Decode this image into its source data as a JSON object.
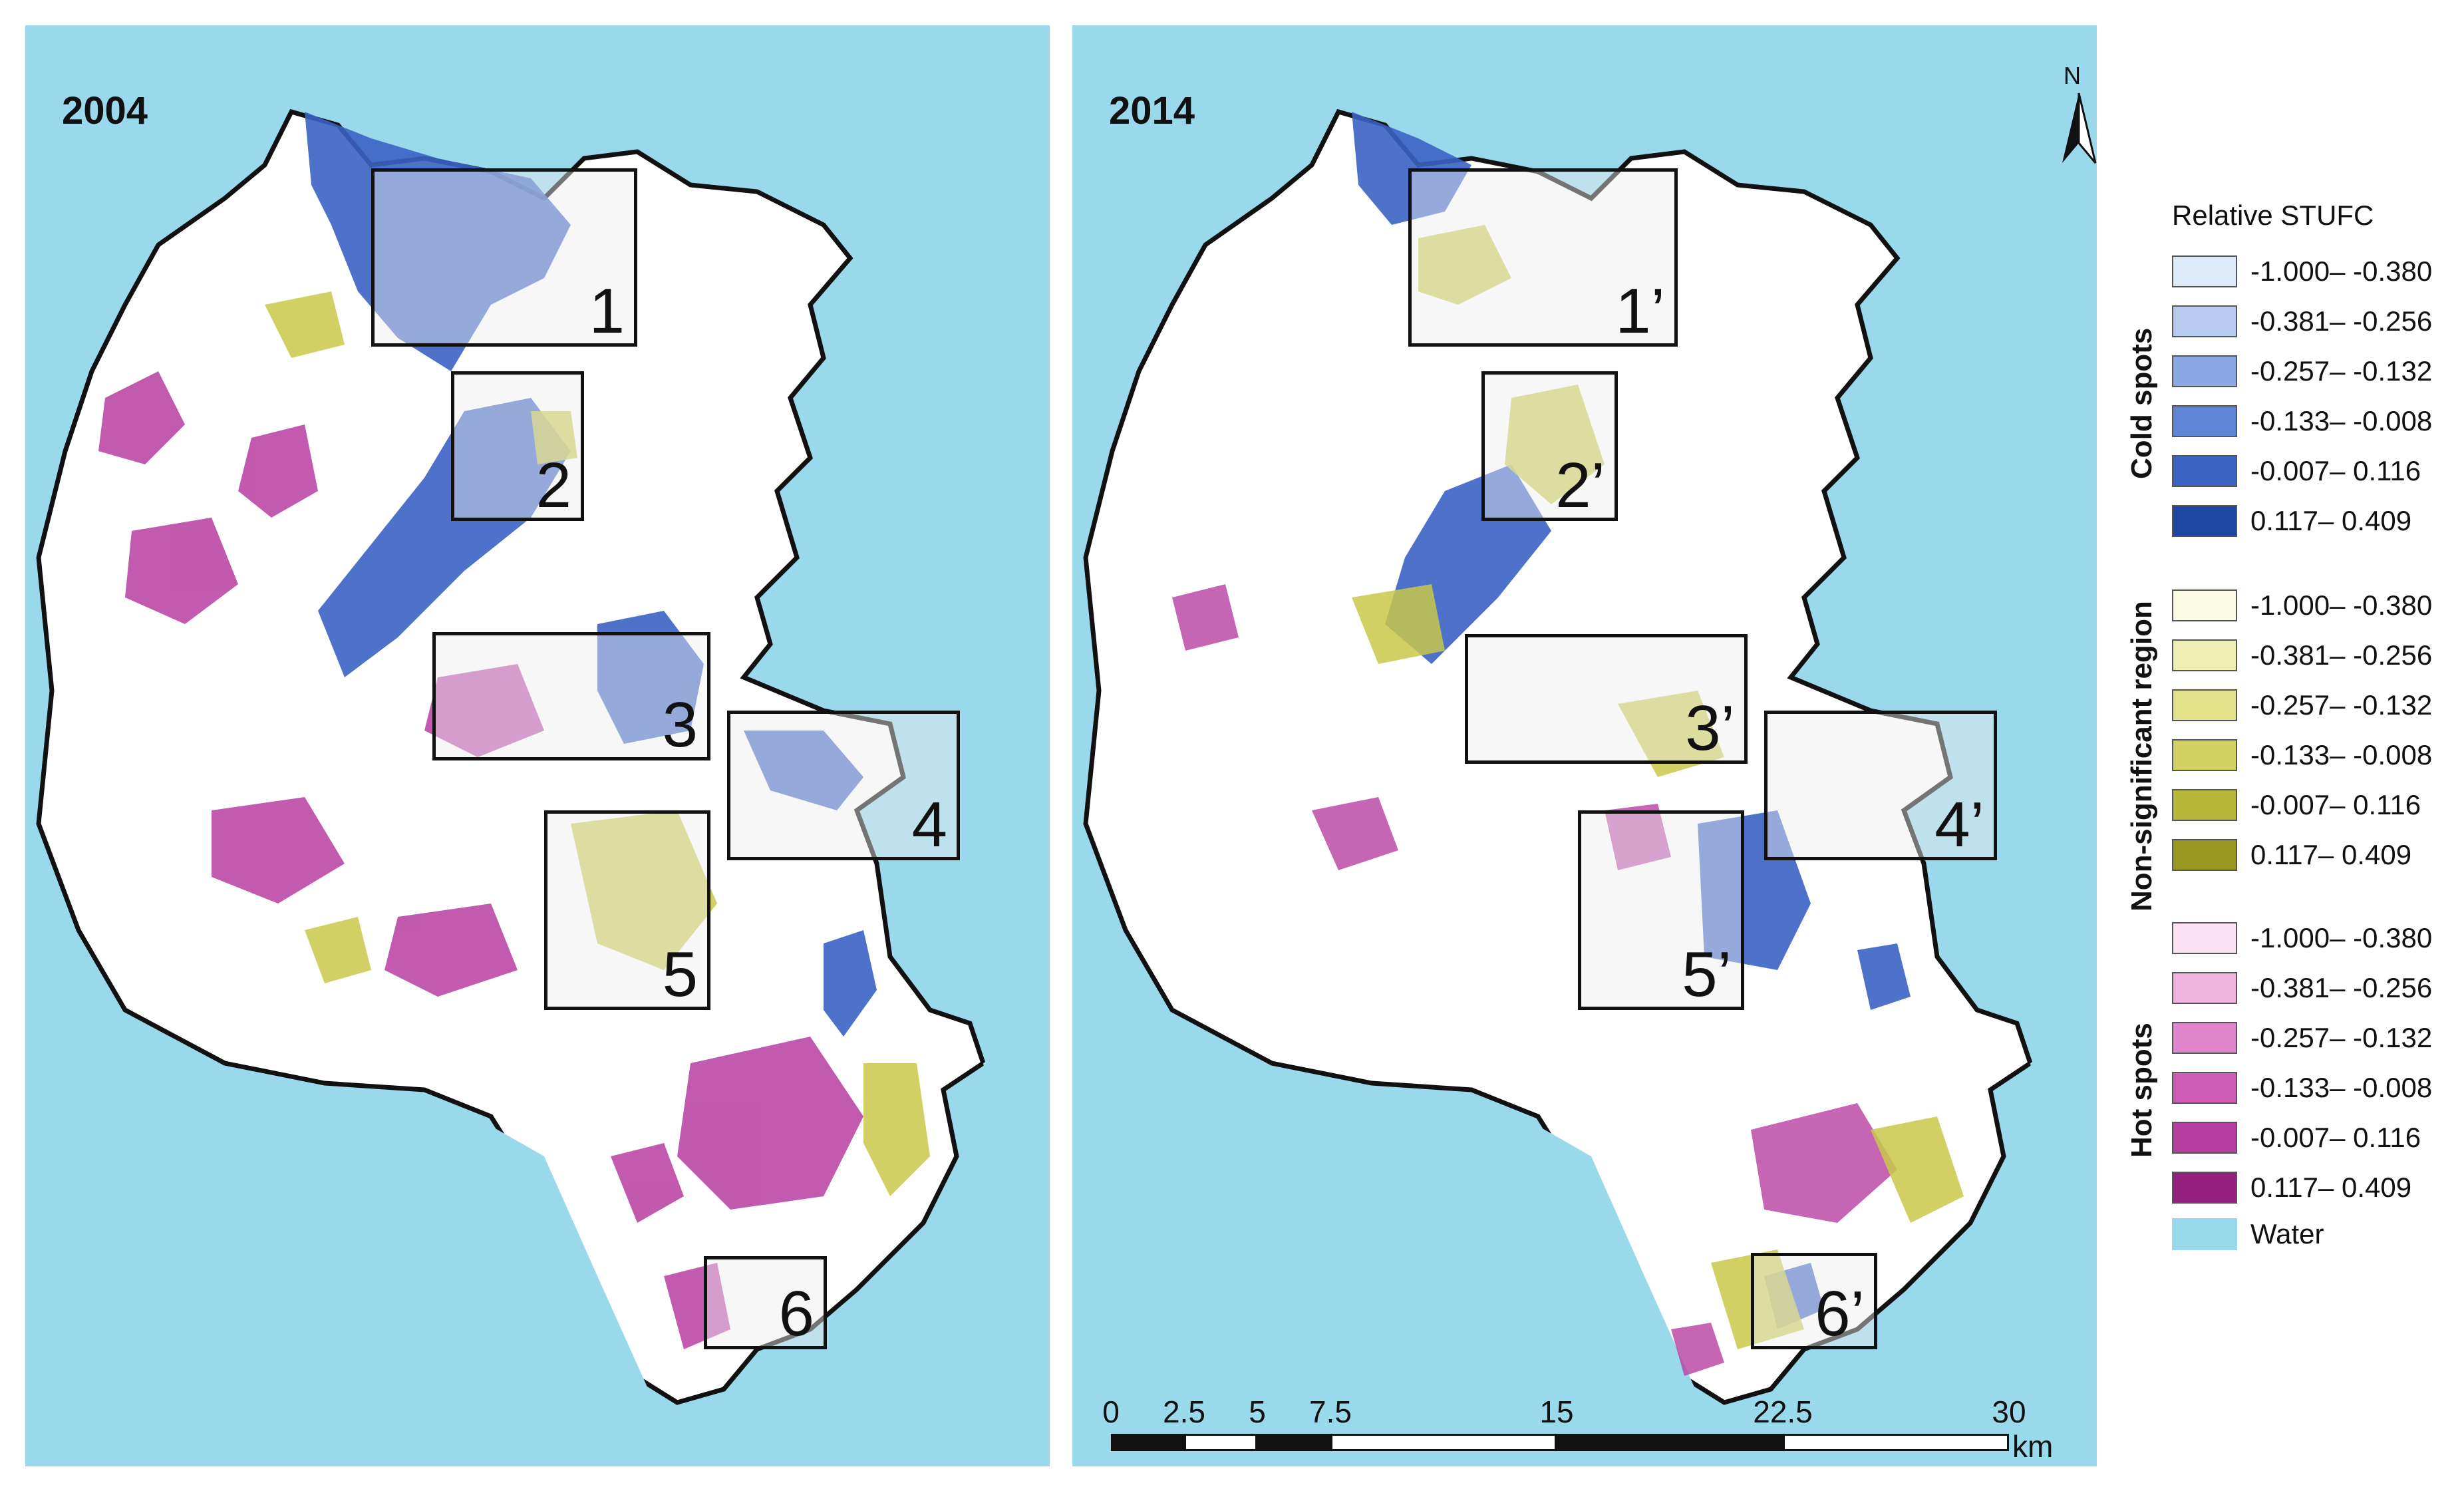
{
  "panels": [
    {
      "year": "2004",
      "insets": [
        "1",
        "2",
        "3",
        "4",
        "5",
        "6"
      ]
    },
    {
      "year": "2014",
      "insets": [
        "1’",
        "2’",
        "3’",
        "4’",
        "5’",
        "6’"
      ]
    }
  ],
  "north_arrow": {
    "label": "N"
  },
  "scale_bar": {
    "ticks": [
      "0",
      "2.5",
      "5",
      "7.5",
      "15",
      "22.5",
      "30"
    ],
    "unit": "km"
  },
  "legend": {
    "title": "Relative STUFC",
    "groups": [
      {
        "label": "Cold spots",
        "items": [
          {
            "range": "-1.000– -0.380",
            "color": "#dfeaf9"
          },
          {
            "range": "-0.381– -0.256",
            "color": "#b7caef"
          },
          {
            "range": "-0.257– -0.132",
            "color": "#8ba8e4"
          },
          {
            "range": "-0.133– -0.008",
            "color": "#5f86d6"
          },
          {
            "range": "-0.007– 0.116",
            "color": "#3b63c4"
          },
          {
            "range": "0.117– 0.409",
            "color": "#1e47a3"
          }
        ]
      },
      {
        "label": "Non-significant region",
        "items": [
          {
            "range": "-1.000– -0.380",
            "color": "#fbfbe3"
          },
          {
            "range": "-0.381– -0.256",
            "color": "#efefb3"
          },
          {
            "range": "-0.257– -0.132",
            "color": "#e3e38b"
          },
          {
            "range": "-0.133– -0.008",
            "color": "#d2d262"
          },
          {
            "range": "-0.007– 0.116",
            "color": "#b7b83a"
          },
          {
            "range": "0.117– 0.409",
            "color": "#9a9a22"
          }
        ]
      },
      {
        "label": "Hot spots",
        "items": [
          {
            "range": "-1.000– -0.380",
            "color": "#fbe3f5"
          },
          {
            "range": "-0.381– -0.256",
            "color": "#f0b2df"
          },
          {
            "range": "-0.257– -0.132",
            "color": "#e086cc"
          },
          {
            "range": "-0.133– -0.008",
            "color": "#cc5cb6"
          },
          {
            "range": "-0.007– 0.116",
            "color": "#b73ea1"
          },
          {
            "range": "0.117– 0.409",
            "color": "#95207f"
          }
        ]
      }
    ],
    "water": {
      "label": "Water",
      "color": "#9ad8ec"
    }
  }
}
